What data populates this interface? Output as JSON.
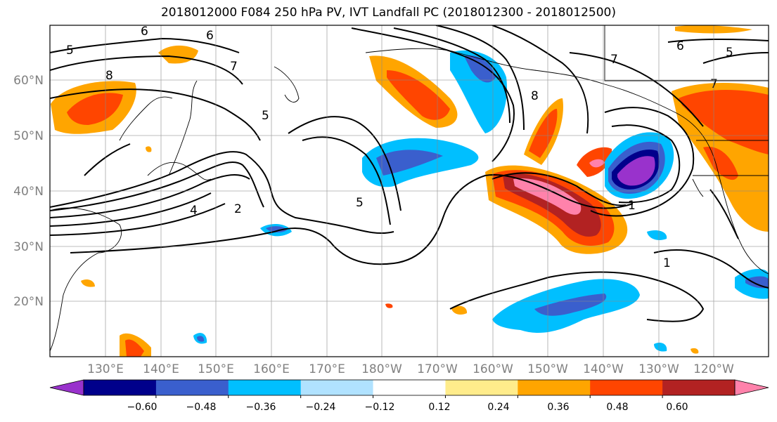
{
  "title": "2018012000 F084 250 hPa PV, IVT Landfall PC (2018012300 - 2018012500)",
  "map": {
    "lon_labels": [
      "130°E",
      "140°E",
      "150°E",
      "160°E",
      "170°E",
      "180°W",
      "170°W",
      "160°W",
      "150°W",
      "140°W",
      "130°W",
      "120°W"
    ],
    "lat_labels": [
      "60°N",
      "50°N",
      "40°N",
      "30°N",
      "20°N"
    ],
    "contour_labels": [
      "6",
      "6",
      "5",
      "8",
      "7",
      "5",
      "4",
      "2",
      "5",
      "7",
      "8",
      "6",
      "5",
      "7",
      "1",
      "1"
    ]
  },
  "colorbar": {
    "tick_labels": [
      "−0.60",
      "−0.48",
      "−0.36",
      "−0.24",
      "−0.12",
      "0.12",
      "0.24",
      "0.36",
      "0.48",
      "0.60"
    ],
    "colors": [
      "#9932cc",
      "#00008b",
      "#3a5fcd",
      "#00bfff",
      "#b0e2ff",
      "#ffffff",
      "#ffec8b",
      "#ffa500",
      "#ff4500",
      "#b22222",
      "#ff82ab"
    ]
  }
}
